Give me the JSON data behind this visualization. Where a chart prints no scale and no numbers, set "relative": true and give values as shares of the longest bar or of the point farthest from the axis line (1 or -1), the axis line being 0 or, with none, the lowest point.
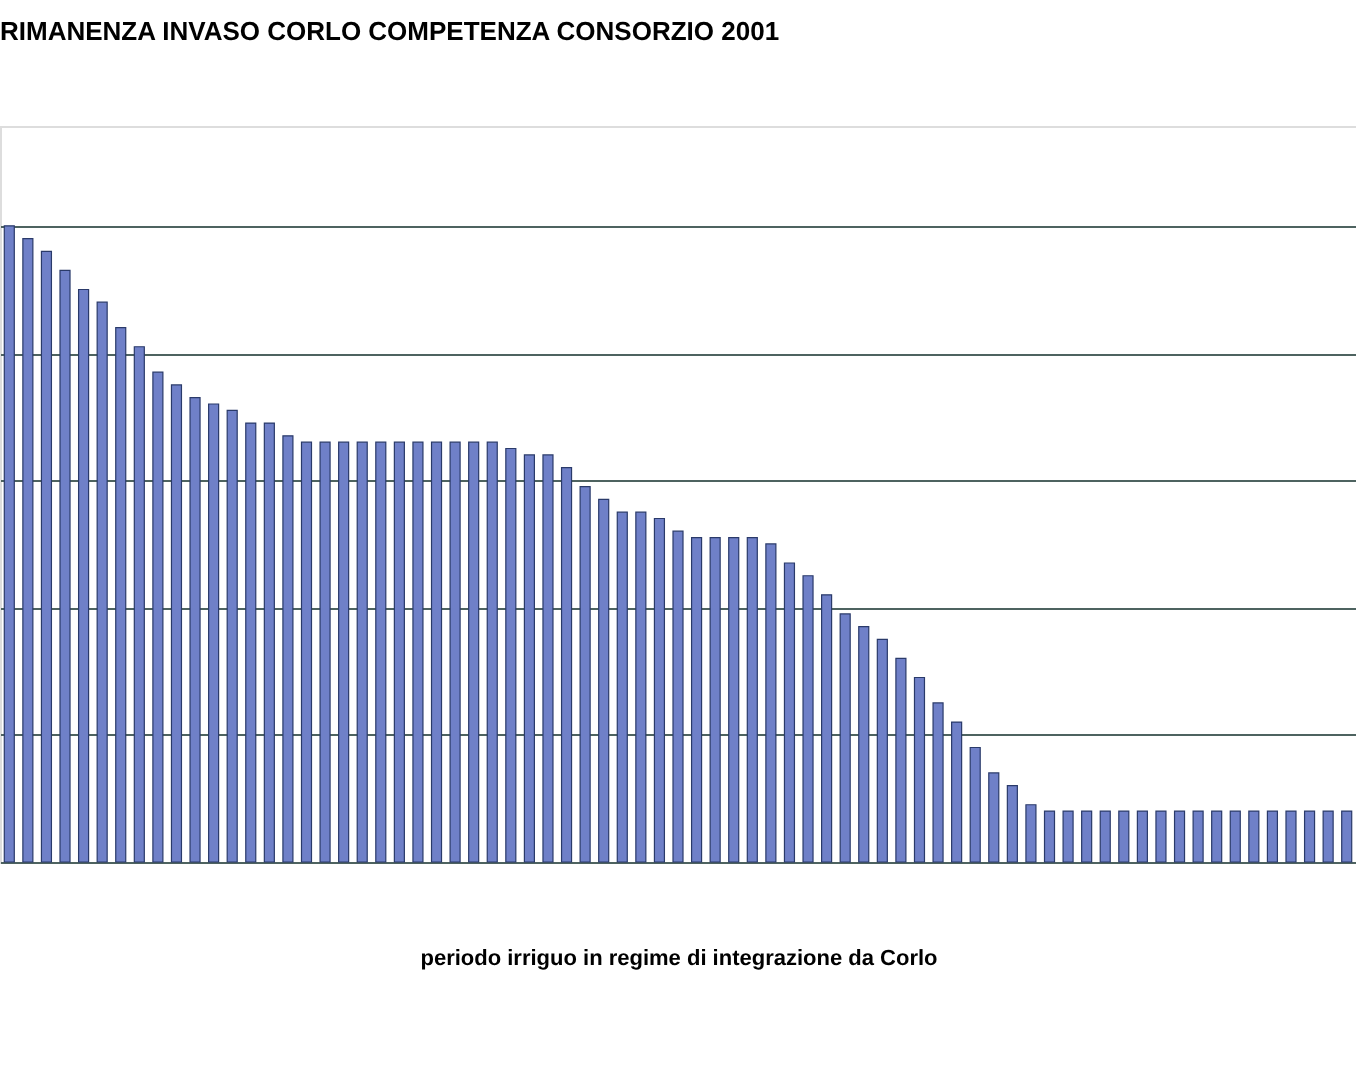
{
  "chart_data": {
    "type": "bar",
    "title": "RIMANENZA INVASO CORLO COMPETENZA CONSORZIO  2001",
    "xlabel": "periodo irriguo in regime di integrazione da Corlo",
    "relative": true,
    "grid": "y",
    "color": "#6f80c8",
    "categories": [
      null,
      null,
      null,
      null,
      null,
      null,
      null,
      null,
      null,
      null,
      null,
      null,
      null,
      null,
      null,
      null,
      null,
      null,
      null,
      null,
      null,
      null,
      null,
      null,
      null,
      null,
      null,
      null,
      null,
      null,
      null,
      null,
      null,
      null,
      null,
      null,
      null,
      null,
      null,
      null,
      null,
      null,
      null,
      null,
      null,
      null,
      null,
      null,
      null,
      null,
      null,
      null,
      null,
      null,
      null,
      null,
      null,
      null,
      null,
      null,
      null,
      null,
      null,
      null,
      null,
      null,
      null,
      null,
      null,
      null,
      null,
      null,
      null
    ],
    "values": [
      1.0,
      0.98,
      0.96,
      0.93,
      0.9,
      0.88,
      0.84,
      0.81,
      0.77,
      0.75,
      0.73,
      0.72,
      0.71,
      0.69,
      0.69,
      0.67,
      0.66,
      0.66,
      0.66,
      0.66,
      0.66,
      0.66,
      0.66,
      0.66,
      0.66,
      0.66,
      0.66,
      0.65,
      0.64,
      0.64,
      0.62,
      0.59,
      0.57,
      0.55,
      0.55,
      0.54,
      0.52,
      0.51,
      0.51,
      0.51,
      0.51,
      0.5,
      0.47,
      0.45,
      0.42,
      0.39,
      0.37,
      0.35,
      0.32,
      0.29,
      0.25,
      0.22,
      0.18,
      0.14,
      0.12,
      0.09,
      0.08,
      0.08,
      0.08,
      0.08,
      0.08,
      0.08,
      0.08,
      0.08,
      0.08,
      0.08,
      0.08,
      0.08,
      0.08,
      0.08,
      0.08,
      0.08,
      0.08
    ]
  }
}
